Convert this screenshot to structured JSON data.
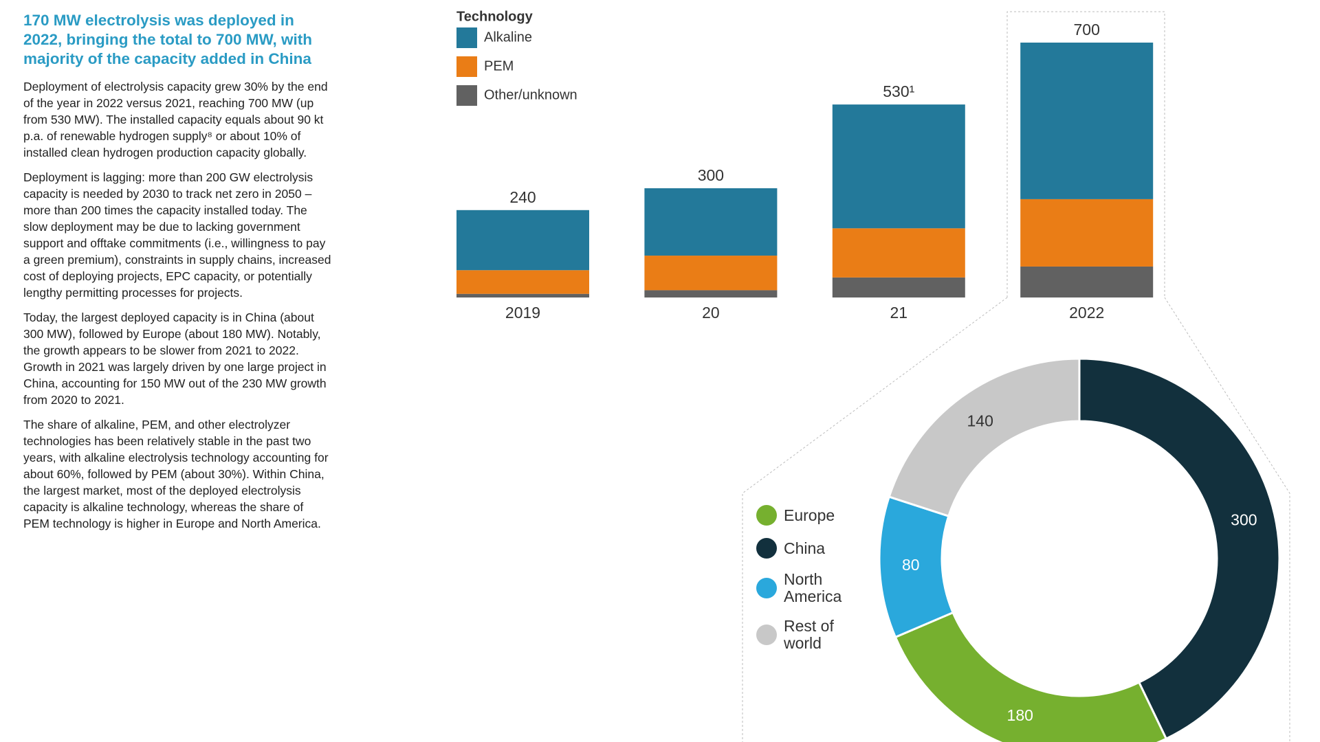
{
  "heading": "170 MW electrolysis was deployed in 2022, bringing the total to 700 MW, with majority of the capacity added in China",
  "paragraphs": [
    "Deployment of electrolysis capacity grew 30% by the end of the year in 2022 versus 2021, reaching 700 MW (up from 530 MW). The installed capacity equals about 90 kt p.a. of renewable hydrogen supply⁸ or about 10% of installed clean hydrogen production capacity globally.",
    "Deployment is lagging: more than 200 GW electrolysis capacity is needed by 2030 to track net zero in 2050 – more than 200 times the capacity installed today. The slow deployment may be due to lacking government support and offtake commitments (i.e., willingness to pay a green premium), constraints in supply chains, increased cost of deploying projects, EPC capacity, or potentially lengthy permitting processes for projects.",
    "Today, the largest deployed capacity is in China (about 300 MW), followed by Europe (about 180 MW). Notably, the growth appears to be slower from 2021 to 2022. Growth in 2021 was largely driven by one large project in China, accounting for 150 MW out of the 230 MW growth from 2020 to 2021.",
    "The share of alkaline, PEM, and other electrolyzer technologies has been relatively stable in the past two years, with alkaline electrolysis technology accounting for about 60%, followed by PEM (about 30%). Within China, the largest market, most of the deployed electrolysis capacity is alkaline technology, whereas the share of PEM technology is higher in Europe and North America."
  ],
  "chart_data": [
    {
      "type": "bar",
      "stacked": true,
      "legend_title": "Technology",
      "categories": [
        "2019",
        "20",
        "21",
        "2022"
      ],
      "series": [
        {
          "name": "Alkaline",
          "color": "#23799a",
          "values": [
            165,
            185,
            340,
            430
          ]
        },
        {
          "name": "PEM",
          "color": "#ea7d16",
          "values": [
            65,
            95,
            135,
            185
          ]
        },
        {
          "name": "Other/unknown",
          "color": "#616161",
          "values": [
            10,
            20,
            55,
            85
          ]
        }
      ],
      "totals": [
        240,
        300,
        530,
        700
      ],
      "value_labels": [
        "240",
        "300",
        "530¹",
        "700"
      ]
    },
    {
      "type": "donut",
      "categories": [
        "Europe",
        "China",
        "North America",
        "Rest of world"
      ],
      "colors": [
        "#76b02f",
        "#12303d",
        "#2aa8dc",
        "#c8c8c8"
      ],
      "values": [
        180,
        300,
        80,
        140
      ]
    }
  ]
}
